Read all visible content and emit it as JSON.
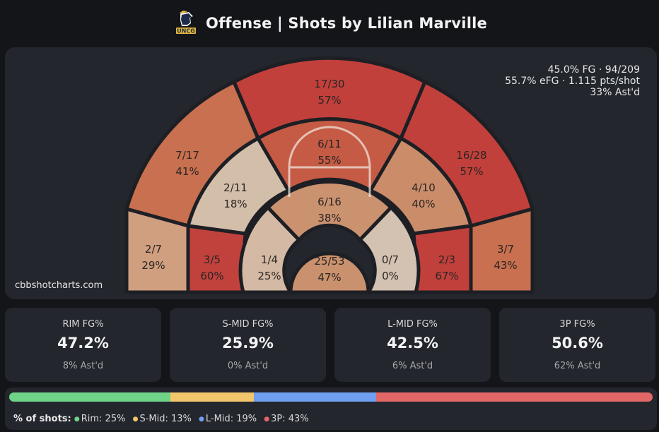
{
  "header": {
    "title": "Offense | Shots by Lilian Marville",
    "logo_icon": "uncg-spartan-logo-icon"
  },
  "court": {
    "stats_lines": [
      "45.0% FG · 94/209",
      "55.7% eFG · 1.115 pts/shot",
      "33% Ast'd"
    ],
    "watermark": "cbbshotcharts.com",
    "zones": {
      "rim": {
        "made_att": "25/53",
        "pct": "47%",
        "color": "#c9916d"
      },
      "paint": {
        "made_att": "6/16",
        "pct": "38%",
        "color": "#cb9270"
      },
      "smid_left": {
        "made_att": "1/4",
        "pct": "25%",
        "color": "#d4baa4"
      },
      "smid_right": {
        "made_att": "0/7",
        "pct": "0%",
        "color": "#d3c1b2"
      },
      "lmid_lb": {
        "made_att": "3/5",
        "pct": "60%",
        "color": "#c1423d"
      },
      "lmid_lw": {
        "made_att": "2/11",
        "pct": "18%",
        "color": "#d3beaa"
      },
      "lmid_top": {
        "made_att": "6/11",
        "pct": "55%",
        "color": "#c55b45"
      },
      "lmid_rw": {
        "made_att": "4/10",
        "pct": "40%",
        "color": "#cb8d69"
      },
      "lmid_rb": {
        "made_att": "2/3",
        "pct": "67%",
        "color": "#c1403b"
      },
      "c3_left": {
        "made_att": "2/7",
        "pct": "29%",
        "color": "#d09f80"
      },
      "w3_left": {
        "made_att": "7/17",
        "pct": "41%",
        "color": "#c8704f"
      },
      "top3": {
        "made_att": "17/30",
        "pct": "57%",
        "color": "#c1403b"
      },
      "w3_right": {
        "made_att": "16/28",
        "pct": "57%",
        "color": "#c1403b"
      },
      "c3_right": {
        "made_att": "3/7",
        "pct": "43%",
        "color": "#c8704f"
      }
    }
  },
  "cards": [
    {
      "label": "RIM FG%",
      "value": "47.2%",
      "sub": "8% Ast'd"
    },
    {
      "label": "S-MID FG%",
      "value": "25.9%",
      "sub": "0% Ast'd"
    },
    {
      "label": "L-MID FG%",
      "value": "42.5%",
      "sub": "6% Ast'd"
    },
    {
      "label": "3P FG%",
      "value": "50.6%",
      "sub": "62% Ast'd"
    }
  ],
  "distribution": {
    "label": "% of shots:",
    "items": [
      {
        "name": "Rim",
        "text": "Rim: 25%",
        "share": 25,
        "color": "#6fd487"
      },
      {
        "name": "S-Mid",
        "text": "S-Mid: 13%",
        "share": 13,
        "color": "#f2c66a"
      },
      {
        "name": "L-Mid",
        "text": "L-Mid: 19%",
        "share": 19,
        "color": "#6f9ff0"
      },
      {
        "name": "3P",
        "text": "3P: 43%",
        "share": 43,
        "color": "#e46767"
      }
    ]
  }
}
